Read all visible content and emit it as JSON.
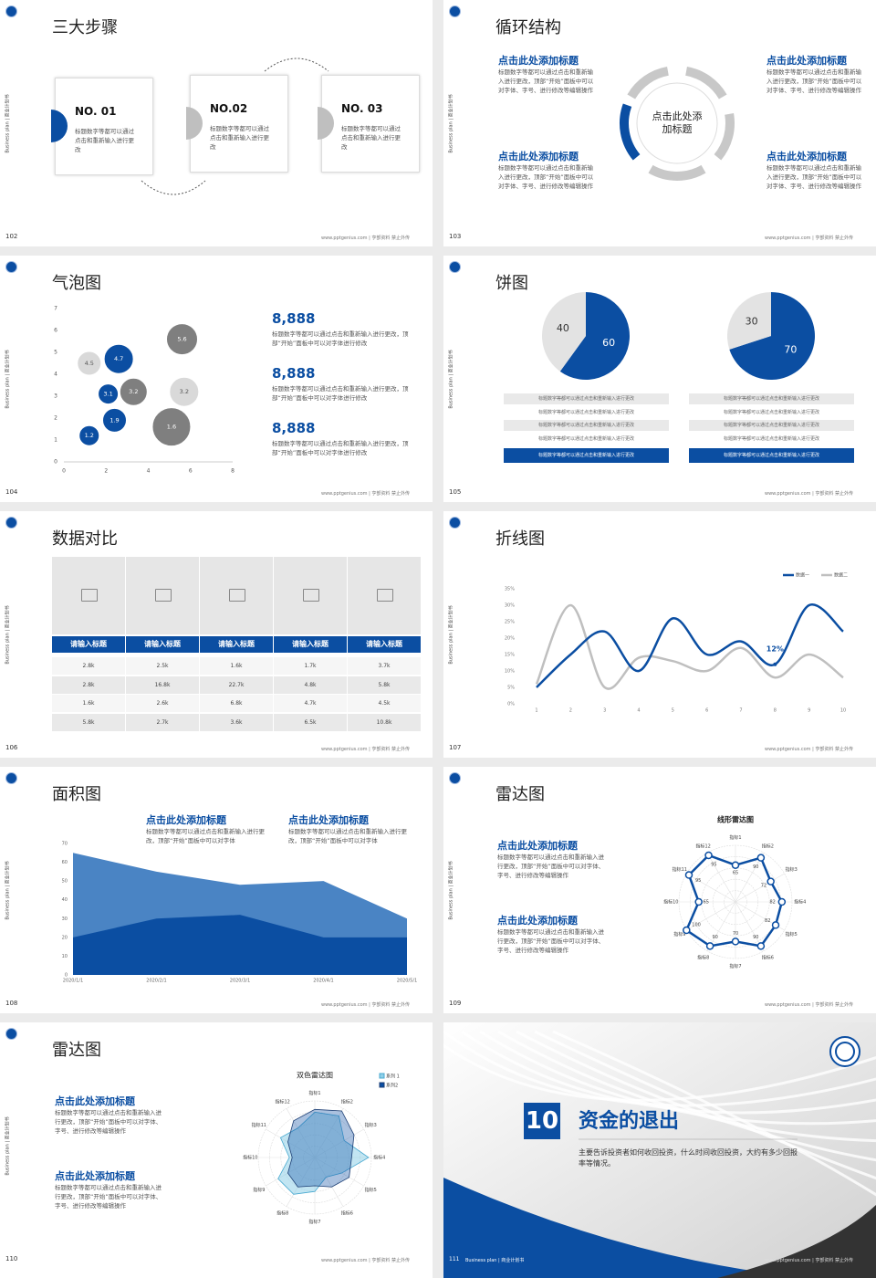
{
  "common": {
    "side_label": "Business plan | 商业计划书",
    "footer": "www.pptgenius.com | 亨部资料 禁止外传"
  },
  "slides": [
    {
      "page": "102",
      "title": "三大步骤",
      "steps": [
        {
          "label": "NO. 01",
          "text": "标题数字等都可以通过点击和重新输入进行更改"
        },
        {
          "label": "NO.02",
          "text": "标题数字等都可以通过点击和重新输入进行更改"
        },
        {
          "label": "NO. 03",
          "text": "标题数字等都可以通过点击和重新输入进行更改"
        }
      ]
    },
    {
      "page": "103",
      "title": "循环结构",
      "center": "点击此处添加标题",
      "blocks": [
        {
          "heading": "点击此处添加标题",
          "text": "标题数字等都可以通过点击和重新输入进行更改，顶部“开始”面板中可以对字体、字号、进行修改等编辑操作"
        },
        {
          "heading": "点击此处添加标题",
          "text": "标题数字等都可以通过点击和重新输入进行更改，顶部“开始”面板中可以对字体、字号、进行修改等编辑操作"
        },
        {
          "heading": "点击此处添加标题",
          "text": "标题数字等都可以通过点击和重新输入进行更改，顶部“开始”面板中可以对字体、字号、进行修改等编辑操作"
        },
        {
          "heading": "点击此处添加标题",
          "text": "标题数字等都可以通过点击和重新输入进行更改，顶部“开始”面板中可以对字体、字号、进行修改等编辑操作"
        }
      ]
    },
    {
      "page": "104",
      "title": "气泡图",
      "chart": {
        "type": "bubble",
        "xlim": [
          0,
          8
        ],
        "xticks": [
          0,
          2,
          4,
          6,
          8
        ],
        "ylim": [
          0,
          7
        ],
        "yticks": [
          0,
          1,
          2,
          3,
          4,
          5,
          6,
          7
        ],
        "points": [
          {
            "x": 1.2,
            "y": 1.2,
            "size": 11,
            "color": "#0b4ea2"
          },
          {
            "x": 2.4,
            "y": 1.9,
            "size": 13,
            "color": "#0b4ea2"
          },
          {
            "x": 2.1,
            "y": 3.1,
            "size": 11,
            "color": "#0b4ea2"
          },
          {
            "x": 3.3,
            "y": 3.2,
            "size": 15,
            "color": "#7f7f7f"
          },
          {
            "x": 1.2,
            "y": 4.5,
            "size": 13,
            "color": "#d9d9d9"
          },
          {
            "x": 2.6,
            "y": 4.7,
            "size": 16,
            "color": "#0b4ea2"
          },
          {
            "x": 5.1,
            "y": 1.6,
            "size": 21,
            "color": "#7f7f7f"
          },
          {
            "x": 5.7,
            "y": 3.2,
            "size": 16,
            "color": "#d9d9d9"
          },
          {
            "x": 5.6,
            "y": 5.6,
            "size": 17,
            "color": "#7f7f7f"
          }
        ]
      },
      "stats": [
        {
          "value": "8,888",
          "text": "标题数字等都可以通过点击和重新输入进行更改，顶部“开始”面板中可以对字体进行修改"
        },
        {
          "value": "8,888",
          "text": "标题数字等都可以通过点击和重新输入进行更改，顶部“开始”面板中可以对字体进行修改"
        },
        {
          "value": "8,888",
          "text": "标题数字等都可以通过点击和重新输入进行更改，顶部“开始”面板中可以对字体进行修改"
        }
      ]
    },
    {
      "page": "105",
      "title": "饼图",
      "charts": [
        {
          "type": "pie",
          "values": [
            60,
            40
          ],
          "colors": [
            "#0b4ea2",
            "#e3e3e3"
          ],
          "rows": [
            "标题数字等都可以通过点击和重新输入进行更改",
            "标题数字等都可以通过点击和重新输入进行更改",
            "标题数字等都可以通过点击和重新输入进行更改",
            "标题数字等都可以通过点击和重新输入进行更改",
            "标题数字等都可以通过点击和重新输入进行更改"
          ]
        },
        {
          "type": "pie",
          "values": [
            70,
            30
          ],
          "colors": [
            "#0b4ea2",
            "#e3e3e3"
          ],
          "rows": [
            "标题数字等都可以通过点击和重新输入进行更改",
            "标题数字等都可以通过点击和重新输入进行更改",
            "标题数字等都可以通过点击和重新输入进行更改",
            "标题数字等都可以通过点击和重新输入进行更改",
            "标题数字等都可以通过点击和重新输入进行更改"
          ]
        }
      ]
    },
    {
      "page": "106",
      "title": "数据对比",
      "table": {
        "headers": [
          "请输入标题",
          "请输入标题",
          "请输入标题",
          "请输入标题",
          "请输入标题"
        ],
        "rows": [
          [
            "2.8k",
            "2.5k",
            "1.6k",
            "1.7k",
            "3.7k"
          ],
          [
            "2.8k",
            "16.8k",
            "22.7k",
            "4.8k",
            "5.8k"
          ],
          [
            "1.6k",
            "2.6k",
            "6.8k",
            "4.7k",
            "4.5k"
          ],
          [
            "5.8k",
            "2.7k",
            "3.6k",
            "6.5k",
            "10.8k"
          ]
        ]
      }
    },
    {
      "page": "107",
      "title": "折线图",
      "chart": {
        "type": "line",
        "x": [
          1,
          2,
          3,
          4,
          5,
          6,
          7,
          8,
          9,
          10
        ],
        "xlim": [
          1,
          10
        ],
        "ylim": [
          0,
          35
        ],
        "yticks": [
          {
            "value": 0,
            "label": "0%"
          },
          {
            "value": 5,
            "label": "5%"
          },
          {
            "value": 10,
            "label": "10%"
          },
          {
            "value": 15,
            "label": "15%"
          },
          {
            "value": 20,
            "label": "20%"
          },
          {
            "value": 25,
            "label": "25%"
          },
          {
            "value": 30,
            "label": "30%"
          },
          {
            "value": 35,
            "label": "35%"
          }
        ],
        "series": [
          {
            "name": "数据一",
            "color": "#0b4ea2",
            "values": [
              5,
              15,
              22,
              10,
              26,
              15,
              19,
              12,
              30,
              22
            ],
            "value_labels": [
              null,
              null,
              null,
              null,
              null,
              null,
              null,
              "12%",
              null,
              null
            ]
          },
          {
            "name": "数据二",
            "color": "#bfbfbf",
            "values": [
              6,
              30,
              5,
              14,
              13,
              10,
              17,
              8,
              15,
              8
            ]
          }
        ]
      }
    },
    {
      "page": "108",
      "title": "面积图",
      "blocks": [
        {
          "heading": "点击此处添加标题",
          "text": "标题数字等都可以通过点击和重新输入进行更改，顶部“开始”面板中可以对字体"
        },
        {
          "heading": "点击此处添加标题",
          "text": "标题数字等都可以通过点击和重新输入进行更改，顶部“开始”面板中可以对字体"
        }
      ],
      "chart": {
        "type": "area",
        "categories": [
          "2020/1/1",
          "2020/2/1",
          "2020/3/1",
          "2020/4/1",
          "2020/5/1"
        ],
        "ylim": [
          0,
          70
        ],
        "yticks": [
          0,
          10,
          20,
          30,
          40,
          50,
          60,
          70
        ],
        "series": [
          {
            "color": "#4a84c4",
            "values": [
              65,
              55,
              48,
              50,
              30
            ]
          },
          {
            "color": "#0b4ea2",
            "values": [
              20,
              30,
              32,
              20,
              20
            ]
          }
        ]
      }
    },
    {
      "page": "109",
      "title": "雷达图",
      "blocks": [
        {
          "heading": "点击此处添加标题",
          "text": "标题数字等都可以通过点击和重新输入进行更改，顶部“开始”面板中可以对字体、字号、进行修改等编辑操作"
        },
        {
          "heading": "点击此处添加标题",
          "text": "标题数字等都可以通过点击和重新输入进行更改，顶部“开始”面板中可以对字体、字号、进行修改等编辑操作"
        }
      ],
      "chart": {
        "type": "radar",
        "title": "线形雷达图",
        "categories": [
          "指标1",
          "指标2",
          "指标3",
          "指标4",
          "指标5",
          "指标6",
          "指标7",
          "指标8",
          "指标9",
          "指标10",
          "指标11",
          "指标12"
        ],
        "rlim": [
          0,
          100
        ],
        "series": [
          {
            "color": "#0b4ea2",
            "values": [
              65,
              90,
              72,
              82,
              82,
              90,
              70,
              90,
              100,
              65,
              95,
              95
            ]
          }
        ],
        "line_labels": true
      }
    },
    {
      "page": "110",
      "title": "雷达图",
      "blocks": [
        {
          "heading": "点击此处添加标题",
          "text": "标题数字等都可以通过点击和重新输入进行更改，顶部“开始”面板中可以对字体、字号、进行修改等编辑操作"
        },
        {
          "heading": "点击此处添加标题",
          "text": "标题数字等都可以通过点击和重新输入进行更改，顶部“开始”面板中可以对字体、字号、进行修改等编辑操作"
        }
      ],
      "chart": {
        "type": "radar",
        "title": "双色雷达图",
        "categories": [
          "指标1",
          "指标2",
          "指标3",
          "指标4",
          "指标5",
          "指标6",
          "指标7",
          "指标8",
          "指标9",
          "指标10",
          "指标11",
          "指标12"
        ],
        "rlim": [
          0,
          100
        ],
        "series": [
          {
            "name": "系列 1",
            "color": "#8fd0e8",
            "values": [
              80,
              85,
              60,
              95,
              55,
              40,
              60,
              75,
              75,
              45,
              70,
              60
            ]
          },
          {
            "name": "系列2",
            "color": "#0b4ea2",
            "values": [
              85,
              95,
              80,
              65,
              70,
              60,
              50,
              60,
              55,
              40,
              55,
              75
            ]
          }
        ]
      }
    },
    {
      "page": "111",
      "section": "10",
      "title": "资金的退出",
      "text": "主要告诉投资者如何收回投资，什么时间收回投资，大约有多少回报率等情况。"
    }
  ]
}
